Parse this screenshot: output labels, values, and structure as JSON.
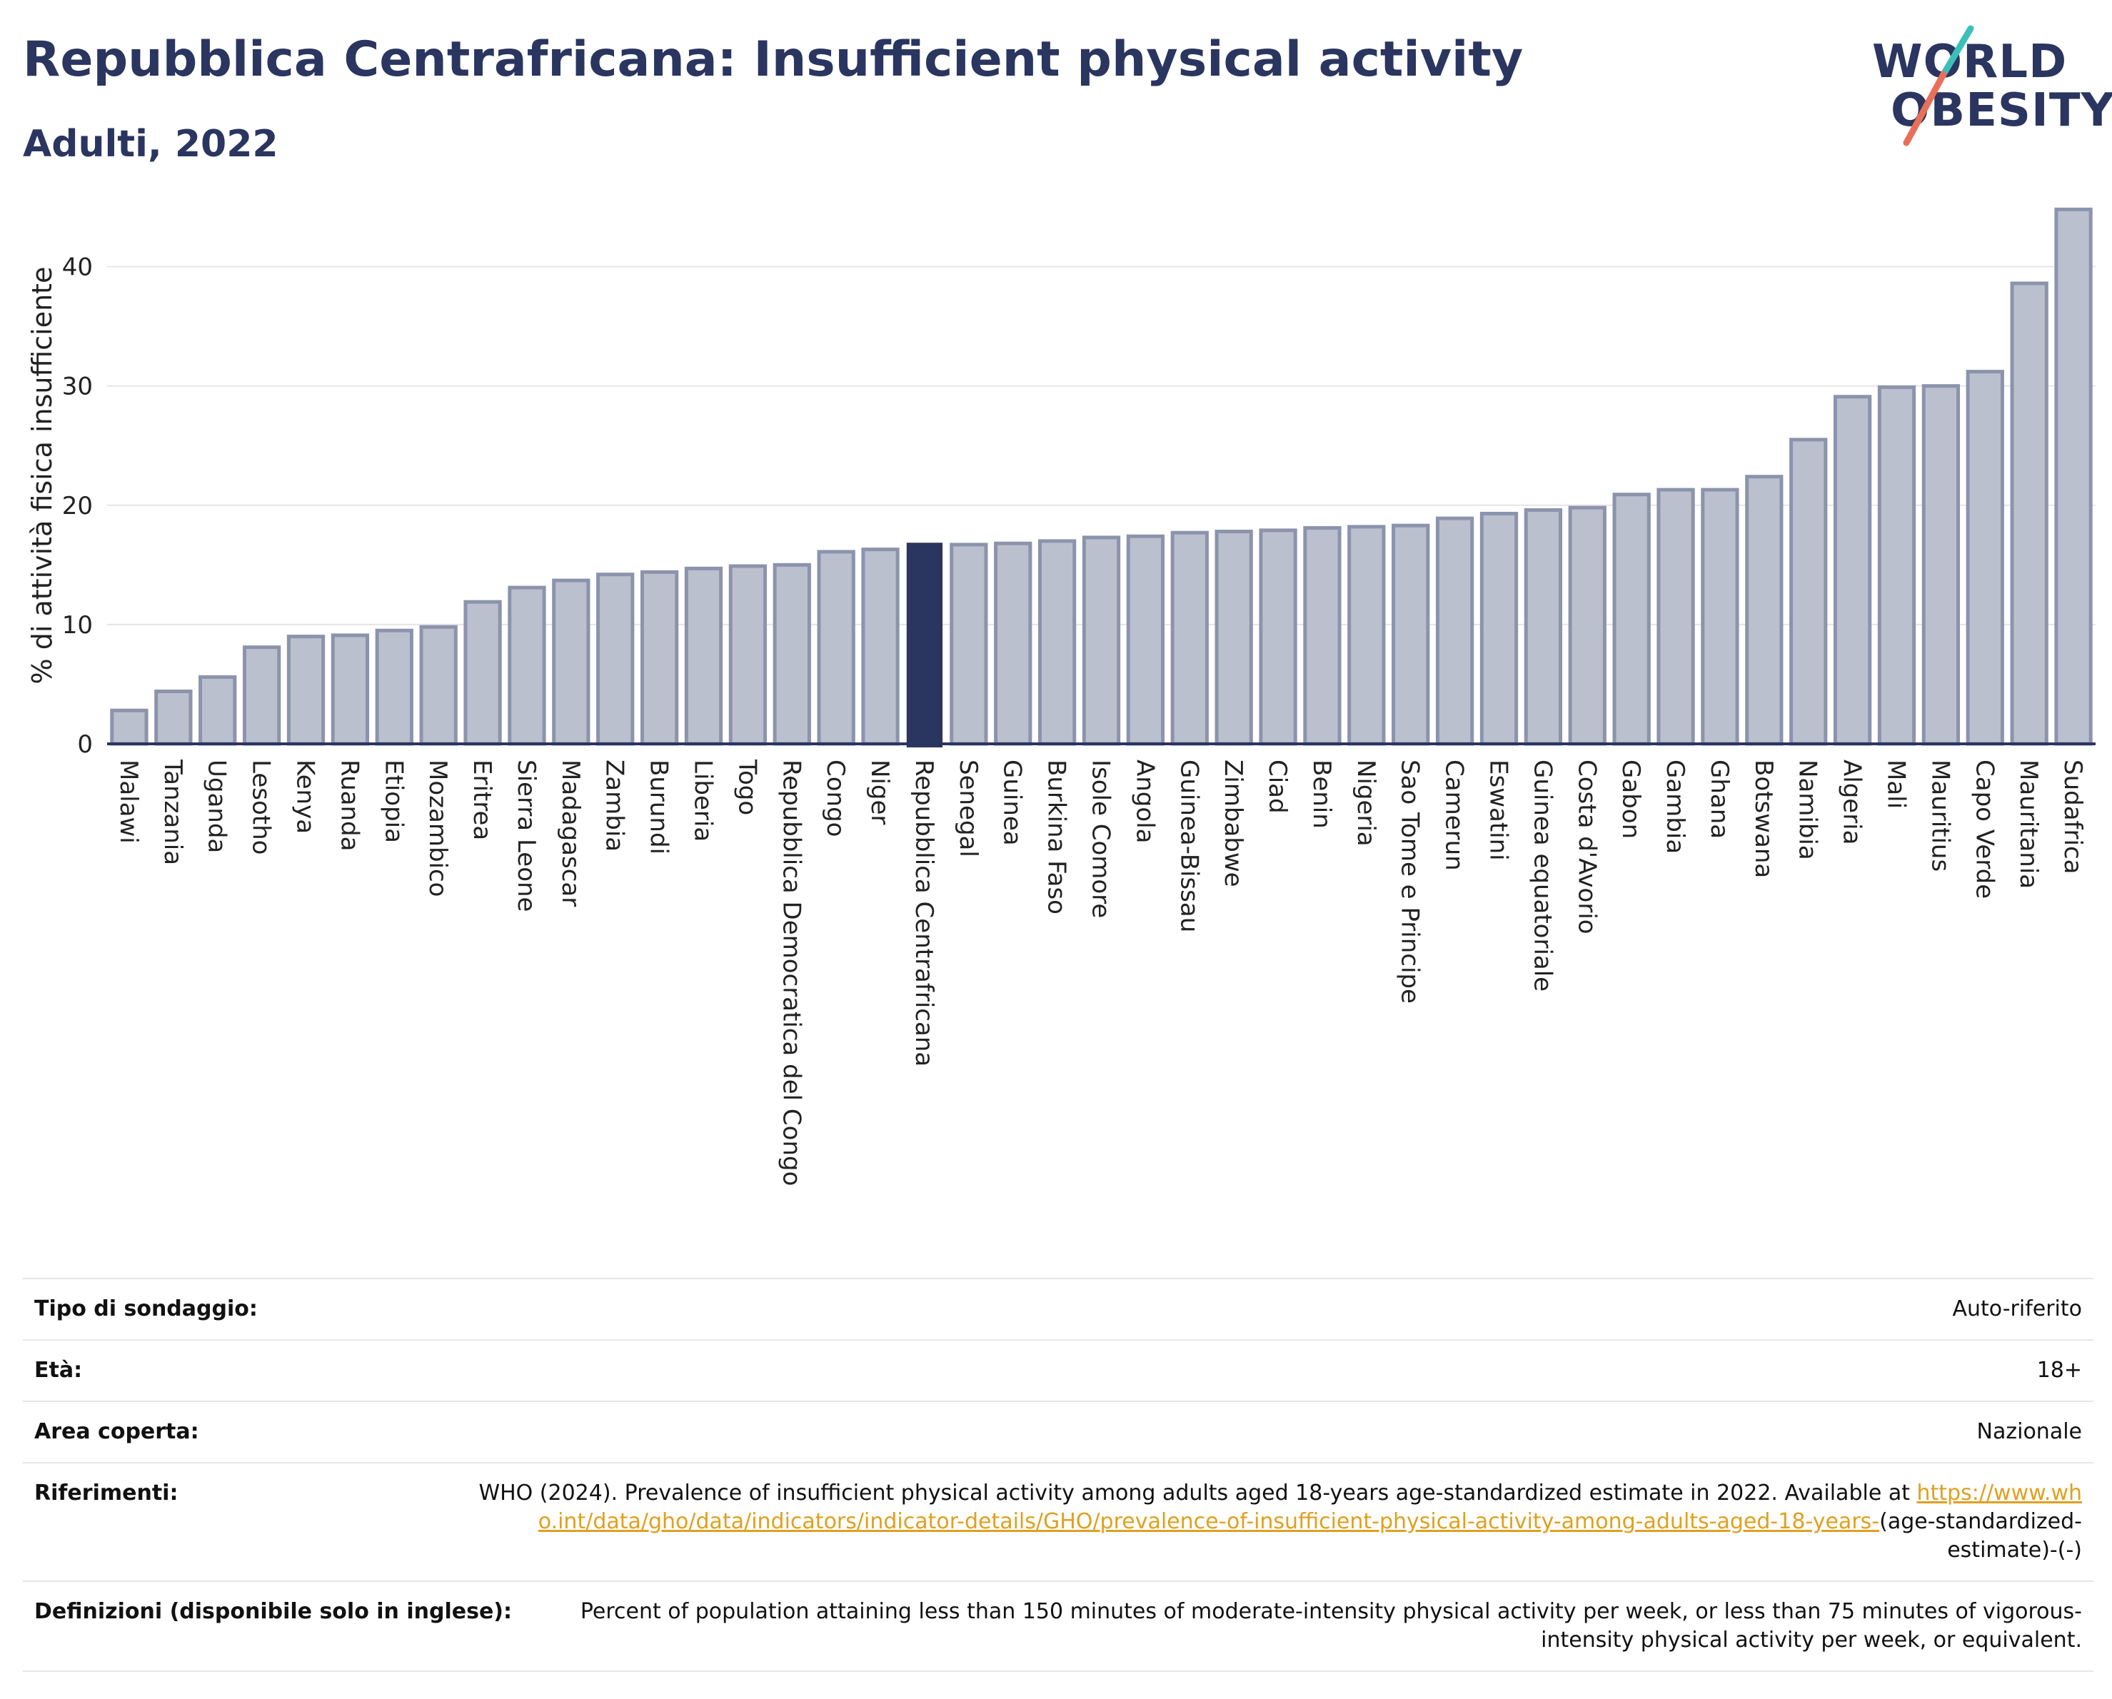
{
  "header": {
    "title": "Repubblica Centrafricana: Insufficient physical activity",
    "subtitle": "Adulti, 2022"
  },
  "logo": {
    "line1": "WORLD",
    "line2": "OBESITY",
    "accent_teal": "#3bbfb8",
    "accent_coral": "#e8705a"
  },
  "colors": {
    "bar": "#bbc0cf",
    "bar_stroke": "#8c93ac",
    "highlight": "#2a3560",
    "grid": "#e5e5e5",
    "axis": "#2a3560"
  },
  "chart_data": {
    "type": "bar",
    "title": "Repubblica Centrafricana: Insufficient physical activity",
    "subtitle": "Adulti, 2022",
    "ylabel": "% di attività fisica insufficiente",
    "xlabel": "",
    "ylim": [
      0,
      45
    ],
    "yticks": [
      0,
      10,
      20,
      30,
      40
    ],
    "grid": true,
    "highlight": "Repubblica Centrafricana",
    "categories": [
      "Malawi",
      "Tanzania",
      "Uganda",
      "Lesotho",
      "Kenya",
      "Ruanda",
      "Etiopia",
      "Mozambico",
      "Eritrea",
      "Sierra Leone",
      "Madagascar",
      "Zambia",
      "Burundi",
      "Liberia",
      "Togo",
      "Repubblica Democratica del Congo",
      "Congo",
      "Niger",
      "Repubblica Centrafricana",
      "Senegal",
      "Guinea",
      "Burkina Faso",
      "Isole Comore",
      "Angola",
      "Guinea-Bissau",
      "Zimbabwe",
      "Ciad",
      "Benin",
      "Nigeria",
      "Sao Tome e Principe",
      "Camerun",
      "Eswatini",
      "Guinea equatoriale",
      "Costa d'Avorio",
      "Gabon",
      "Gambia",
      "Ghana",
      "Botswana",
      "Namibia",
      "Algeria",
      "Mali",
      "Mauritius",
      "Capo Verde",
      "Mauritania",
      "Sudafrica"
    ],
    "values": [
      2.8,
      4.4,
      5.6,
      8.1,
      9.0,
      9.1,
      9.5,
      9.8,
      11.9,
      13.1,
      13.7,
      14.2,
      14.4,
      14.7,
      14.9,
      15.0,
      16.1,
      16.3,
      16.8,
      16.7,
      16.8,
      17.0,
      17.3,
      17.4,
      17.7,
      17.8,
      17.9,
      18.1,
      18.2,
      18.3,
      18.9,
      19.3,
      19.6,
      19.8,
      20.9,
      21.3,
      21.3,
      22.4,
      25.5,
      29.1,
      29.9,
      30.0,
      31.2,
      38.6,
      44.8
    ]
  },
  "info": [
    {
      "label": "Tipo di sondaggio:",
      "value": "Auto-riferito"
    },
    {
      "label": "Età:",
      "value": "18+"
    },
    {
      "label": "Area coperta:",
      "value": "Nazionale"
    },
    {
      "label": "Riferimenti:",
      "value": "WHO (2024). Prevalence of insufficient physical activity among adults aged 18-years age-standardized estimate in 2022. Available at",
      "link": "https://www.who.int/data/gho/data/indicators/indicator-details/GHO/prevalence-of-insufficient-physical-activity-among-adults-aged-18-years-",
      "value_after": "(age-standardized-estimate)-(-)"
    },
    {
      "label": "Definizioni (disponibile solo in inglese):",
      "value": "Percent of population attaining less than 150 minutes of moderate-intensity physical activity per week, or less than 75 minutes of vigorous-intensity physical activity per week, or equivalent."
    }
  ]
}
